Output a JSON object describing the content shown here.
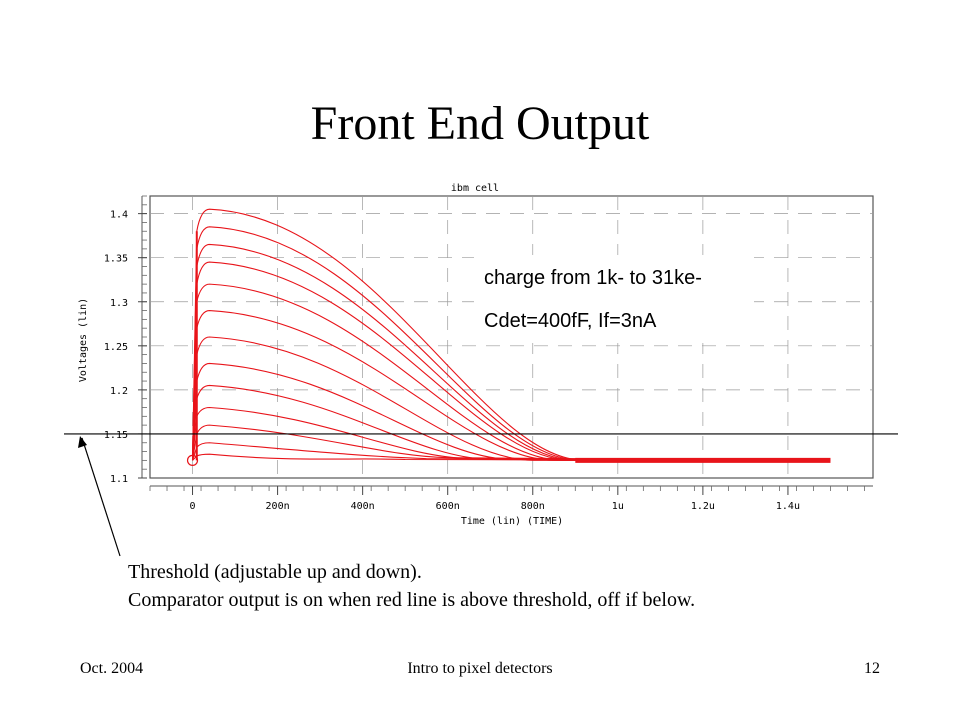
{
  "slide": {
    "title": "Front End Output",
    "caption_line1": "Threshold (adjustable up and down).",
    "caption_line2": "Comparator output is on when red line is above threshold, off if below.",
    "footer_left": "Oct. 2004",
    "footer_center": "Intro to pixel detectors",
    "footer_right": "12"
  },
  "chart_data": {
    "type": "line",
    "title": "ibm cell",
    "xlabel": "Time (lin) (TIME)",
    "ylabel": "Voltages (lin)",
    "xlim": [
      -1e-07,
      1.6e-06
    ],
    "ylim": [
      1.1,
      1.42
    ],
    "x_ticks": [
      0,
      2e-07,
      4e-07,
      6e-07,
      8e-07,
      1e-06,
      1.2e-06,
      1.4e-06
    ],
    "x_tick_labels": [
      "0",
      "200n",
      "400n",
      "600n",
      "800n",
      "1u",
      "1.2u",
      "1.4u"
    ],
    "y_ticks": [
      1.1,
      1.15,
      1.2,
      1.25,
      1.3,
      1.35,
      1.4
    ],
    "y_tick_labels": [
      "1.1",
      "1.15",
      "1.2",
      "1.25",
      "1.3",
      "1.35",
      "1.4"
    ],
    "grid": true,
    "annotation_line1": "charge from 1k- to 31ke-",
    "annotation_line2": "Cdet=400fF, If=3nA",
    "threshold": 1.15,
    "baseline": 1.12,
    "series_color": "#e8141a",
    "series": [
      {
        "x": [
          0,
          1e-08,
          4e-08,
          5e-07,
          1.5e-06
        ],
        "y": [
          1.12,
          1.125,
          1.127,
          1.121,
          1.12
        ]
      },
      {
        "x": [
          0,
          1e-08,
          4e-08,
          5.5e-07,
          1.5e-06
        ],
        "y": [
          1.12,
          1.135,
          1.14,
          1.122,
          1.12
        ]
      },
      {
        "x": [
          0,
          1e-08,
          4e-08,
          6e-07,
          1.5e-06
        ],
        "y": [
          1.12,
          1.15,
          1.16,
          1.123,
          1.12
        ]
      },
      {
        "x": [
          0,
          1e-08,
          4e-08,
          6.5e-07,
          1.5e-06
        ],
        "y": [
          1.12,
          1.17,
          1.18,
          1.122,
          1.12
        ]
      },
      {
        "x": [
          0,
          1e-08,
          4e-08,
          7e-07,
          1.5e-06
        ],
        "y": [
          1.12,
          1.19,
          1.205,
          1.121,
          1.12
        ]
      },
      {
        "x": [
          0,
          1e-08,
          4e-08,
          7.5e-07,
          1.5e-06
        ],
        "y": [
          1.12,
          1.21,
          1.23,
          1.121,
          1.12
        ]
      },
      {
        "x": [
          0,
          1e-08,
          4e-08,
          8e-07,
          1.5e-06
        ],
        "y": [
          1.12,
          1.24,
          1.26,
          1.12,
          1.12
        ]
      },
      {
        "x": [
          0,
          1e-08,
          4e-08,
          8.5e-07,
          1.5e-06
        ],
        "y": [
          1.12,
          1.27,
          1.29,
          1.12,
          1.12
        ]
      },
      {
        "x": [
          0,
          1e-08,
          4e-08,
          8.7e-07,
          1.5e-06
        ],
        "y": [
          1.12,
          1.3,
          1.32,
          1.12,
          1.12
        ]
      },
      {
        "x": [
          0,
          1e-08,
          4e-08,
          8.9e-07,
          1.5e-06
        ],
        "y": [
          1.12,
          1.32,
          1.345,
          1.12,
          1.12
        ]
      },
      {
        "x": [
          0,
          1e-08,
          4e-08,
          9e-07,
          1.5e-06
        ],
        "y": [
          1.12,
          1.34,
          1.365,
          1.12,
          1.12
        ]
      },
      {
        "x": [
          0,
          1e-08,
          4e-08,
          9.1e-07,
          1.5e-06
        ],
        "y": [
          1.12,
          1.36,
          1.385,
          1.12,
          1.12
        ]
      },
      {
        "x": [
          0,
          1e-08,
          4e-08,
          9.2e-07,
          1.5e-06
        ],
        "y": [
          1.12,
          1.38,
          1.405,
          1.12,
          1.12
        ]
      }
    ]
  }
}
